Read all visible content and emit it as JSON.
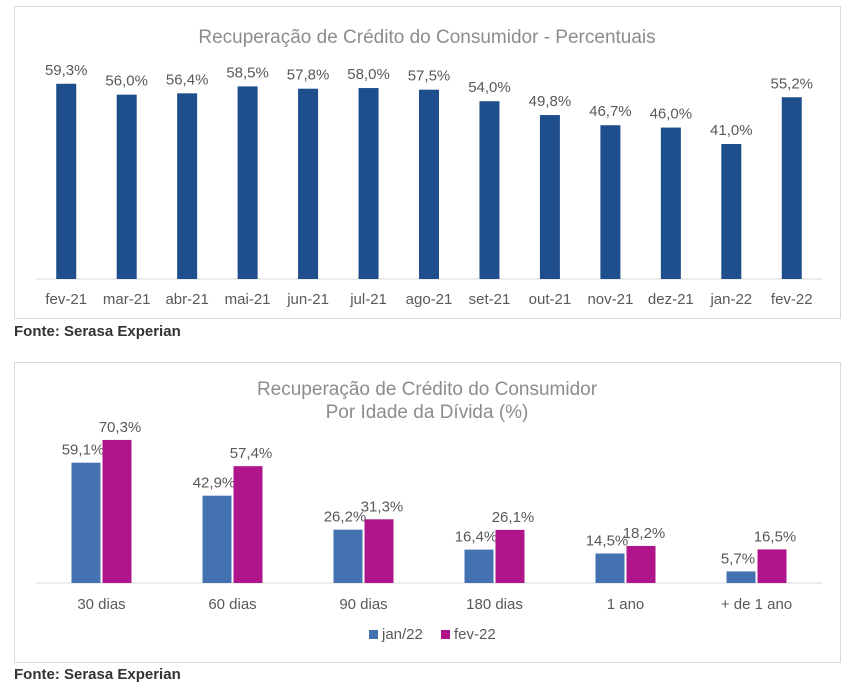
{
  "sources": {
    "chart1": "Fonte: Serasa Experian",
    "chart2": "Fonte: Serasa Experian"
  },
  "colors": {
    "bar_primary": "#1f4e8c",
    "series_jan22": "#4472b1",
    "series_fev22": "#b0148a",
    "title": "#8c8c8c",
    "label": "#595959",
    "axis": "#d9d9d9"
  },
  "chart_data": [
    {
      "type": "bar",
      "title": "Recuperação de Crédito do Consumidor - Percentuais",
      "categories": [
        "fev-21",
        "mar-21",
        "abr-21",
        "mai-21",
        "jun-21",
        "jul-21",
        "ago-21",
        "set-21",
        "out-21",
        "nov-21",
        "dez-21",
        "jan-22",
        "fev-22"
      ],
      "values": [
        59.3,
        56.0,
        56.4,
        58.5,
        57.8,
        58.0,
        57.5,
        54.0,
        49.8,
        46.7,
        46.0,
        41.0,
        55.2
      ],
      "data_labels": [
        "59,3%",
        "56,0%",
        "56,4%",
        "58,5%",
        "57,8%",
        "58,0%",
        "57,5%",
        "54,0%",
        "49,8%",
        "46,7%",
        "46,0%",
        "41,0%",
        "55,2%"
      ],
      "ylim": [
        0,
        65
      ],
      "grid": false,
      "legend": "none"
    },
    {
      "type": "bar",
      "title": "Recuperação de Crédito do Consumidor",
      "subtitle": "Por Idade da Dívida (%)",
      "categories": [
        "30 dias",
        "60 dias",
        "90 dias",
        "180 dias",
        "1 ano",
        "+ de 1 ano"
      ],
      "series": [
        {
          "name": "jan/22",
          "values": [
            59.1,
            42.9,
            26.2,
            16.4,
            14.5,
            5.7
          ],
          "data_labels": [
            "59,1%",
            "42,9%",
            "26,2%",
            "16,4%",
            "14,5%",
            "5,7%"
          ]
        },
        {
          "name": "fev-22",
          "values": [
            70.3,
            57.4,
            31.3,
            26.1,
            18.2,
            16.5
          ],
          "data_labels": [
            "70,3%",
            "57,4%",
            "31,3%",
            "26,1%",
            "18,2%",
            "16,5%"
          ]
        }
      ],
      "ylim": [
        0,
        85
      ],
      "grid": false,
      "legend": "bottom"
    }
  ]
}
